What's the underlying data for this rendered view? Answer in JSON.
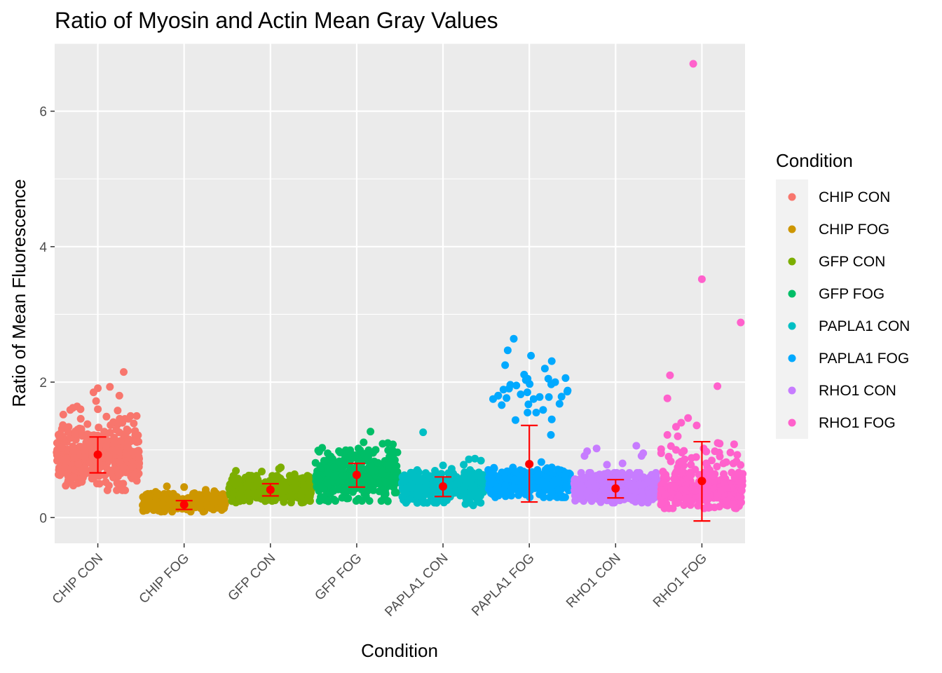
{
  "chart_data": {
    "type": "scatter",
    "title": "Ratio of Myosin and Actin Mean Gray Values",
    "xlabel": "Condition",
    "ylabel": "Ratio of Mean Fluorescence",
    "ylim": [
      -0.38,
      7.0
    ],
    "yticks": [
      0,
      2,
      4,
      6
    ],
    "grid": true,
    "legend": {
      "title": "Condition",
      "position": "right"
    },
    "categories": [
      "CHIP CON",
      "CHIP FOG",
      "GFP CON",
      "GFP FOG",
      "PAPLA1 CON",
      "PAPLA1 FOG",
      "RHO1 CON",
      "RHO1 FOG"
    ],
    "colors": [
      "#F8766D",
      "#CD9600",
      "#7CAE00",
      "#00BE67",
      "#00BFC4",
      "#00A9FF",
      "#C77CFF",
      "#FF61CC"
    ],
    "summary_color": "#FF0000",
    "summary": [
      {
        "category": "CHIP CON",
        "mean": 0.93,
        "lower": 0.66,
        "upper": 1.19
      },
      {
        "category": "CHIP FOG",
        "mean": 0.19,
        "lower": 0.12,
        "upper": 0.25
      },
      {
        "category": "GFP CON",
        "mean": 0.41,
        "lower": 0.32,
        "upper": 0.5
      },
      {
        "category": "GFP FOG",
        "mean": 0.63,
        "lower": 0.45,
        "upper": 0.8
      },
      {
        "category": "PAPLA1 CON",
        "mean": 0.46,
        "lower": 0.31,
        "upper": 0.6
      },
      {
        "category": "PAPLA1 FOG",
        "mean": 0.79,
        "lower": 0.23,
        "upper": 1.36
      },
      {
        "category": "RHO1 CON",
        "mean": 0.43,
        "lower": 0.29,
        "upper": 0.56
      },
      {
        "category": "RHO1 FOG",
        "mean": 0.54,
        "lower": -0.05,
        "upper": 1.12
      }
    ],
    "series": [
      {
        "name": "CHIP CON",
        "clusters": [
          [
            0.93,
            0.24,
            380
          ]
        ],
        "points": [
          [
            -0.32,
            1.59
          ],
          [
            -0.29,
            1.62
          ],
          [
            -0.24,
            1.64
          ],
          [
            -0.2,
            1.6
          ],
          [
            -0.05,
            1.85
          ],
          [
            0.0,
            1.91
          ],
          [
            -0.02,
            1.72
          ],
          [
            0.0,
            1.6
          ],
          [
            0.14,
            1.93
          ],
          [
            0.25,
            1.8
          ],
          [
            0.23,
            1.58
          ],
          [
            0.3,
            2.15
          ],
          [
            0.38,
            1.5
          ],
          [
            0.45,
            1.5
          ],
          [
            0.1,
            1.49
          ],
          [
            -0.4,
            1.52
          ],
          [
            0.18,
            1.41
          ],
          [
            -0.12,
            1.38
          ]
        ]
      },
      {
        "name": "CHIP FOG",
        "clusters": [
          [
            0.22,
            0.06,
            380
          ]
        ],
        "points": [
          [
            -0.42,
            0.35
          ],
          [
            -0.2,
            0.46
          ],
          [
            0.0,
            0.45
          ],
          [
            0.25,
            0.41
          ],
          [
            0.35,
            0.39
          ],
          [
            -0.33,
            0.38
          ],
          [
            0.12,
            0.36
          ]
        ]
      },
      {
        "name": "GFP CON",
        "clusters": [
          [
            0.42,
            0.09,
            380
          ]
        ],
        "points": [
          [
            -0.4,
            0.69
          ],
          [
            -0.1,
            0.68
          ],
          [
            0.1,
            0.72
          ],
          [
            0.12,
            0.74
          ],
          [
            0.28,
            0.64
          ],
          [
            0.45,
            0.6
          ],
          [
            -0.25,
            0.62
          ]
        ]
      },
      {
        "name": "GFP FOG",
        "clusters": [
          [
            0.62,
            0.17,
            380
          ]
        ],
        "points": [
          [
            -0.4,
            1.03
          ],
          [
            -0.18,
            0.96
          ],
          [
            -0.02,
            0.92
          ],
          [
            0.02,
            1.02
          ],
          [
            0.08,
            1.11
          ],
          [
            0.16,
            1.27
          ],
          [
            0.22,
            1.0
          ],
          [
            0.3,
            1.09
          ],
          [
            0.36,
            1.1
          ],
          [
            0.42,
            1.08
          ],
          [
            -0.3,
            0.9
          ],
          [
            -0.33,
            0.24
          ],
          [
            0.36,
            0.24
          ]
        ]
      },
      {
        "name": "PAPLA1 CON",
        "clusters": [
          [
            0.46,
            0.11,
            340
          ]
        ],
        "points": [
          [
            -0.23,
            1.26
          ],
          [
            -0.35,
            0.65
          ],
          [
            0.0,
            0.77
          ],
          [
            0.1,
            0.72
          ],
          [
            0.24,
            0.78
          ],
          [
            0.3,
            0.86
          ],
          [
            0.37,
            0.87
          ],
          [
            0.44,
            0.84
          ],
          [
            0.26,
            0.2
          ],
          [
            0.35,
            0.18
          ],
          [
            -0.1,
            0.22
          ]
        ]
      },
      {
        "name": "PAPLA1 FOG",
        "clusters": [
          [
            0.52,
            0.1,
            320
          ],
          [
            1.85,
            0.12,
            10
          ]
        ],
        "points": [
          [
            -0.42,
            1.75
          ],
          [
            -0.36,
            1.8
          ],
          [
            -0.32,
            1.66
          ],
          [
            -0.3,
            1.89
          ],
          [
            -0.28,
            2.25
          ],
          [
            -0.25,
            2.47
          ],
          [
            -0.22,
            1.96
          ],
          [
            -0.18,
            2.64
          ],
          [
            -0.15,
            1.95
          ],
          [
            -0.1,
            1.82
          ],
          [
            -0.06,
            2.11
          ],
          [
            -0.04,
            2.03
          ],
          [
            -0.02,
            2.05
          ],
          [
            0.02,
            2.39
          ],
          [
            0.05,
            1.75
          ],
          [
            0.08,
            1.55
          ],
          [
            0.12,
            1.78
          ],
          [
            0.16,
            1.59
          ],
          [
            0.18,
            2.2
          ],
          [
            0.22,
            2.05
          ],
          [
            0.26,
            2.31
          ],
          [
            0.3,
            2.0
          ],
          [
            0.35,
            1.68
          ],
          [
            0.42,
            2.06
          ],
          [
            0.44,
            1.86
          ],
          [
            -0.16,
            1.44
          ],
          [
            0.25,
            1.22
          ],
          [
            0.26,
            1.45
          ],
          [
            -0.02,
            1.55
          ],
          [
            0.14,
            0.82
          ]
        ]
      },
      {
        "name": "RHO1 CON",
        "clusters": [
          [
            0.44,
            0.1,
            380
          ]
        ],
        "points": [
          [
            -0.36,
            0.91
          ],
          [
            -0.33,
            0.98
          ],
          [
            -0.22,
            1.02
          ],
          [
            0.24,
            1.06
          ],
          [
            0.3,
            0.91
          ],
          [
            0.32,
            0.95
          ],
          [
            0.08,
            0.8
          ],
          [
            -0.1,
            0.78
          ]
        ]
      },
      {
        "name": "RHO1 FOG",
        "clusters": [
          [
            0.4,
            0.12,
            360
          ],
          [
            0.8,
            0.15,
            30
          ]
        ],
        "points": [
          [
            -0.1,
            6.7
          ],
          [
            0.0,
            3.52
          ],
          [
            0.45,
            2.88
          ],
          [
            -0.37,
            2.1
          ],
          [
            -0.4,
            1.76
          ],
          [
            0.18,
            1.94
          ],
          [
            -0.3,
            1.34
          ],
          [
            -0.24,
            1.4
          ],
          [
            -0.16,
            1.47
          ],
          [
            -0.06,
            1.36
          ],
          [
            -0.4,
            1.22
          ],
          [
            -0.28,
            1.2
          ],
          [
            -0.3,
            1.0
          ],
          [
            0.02,
            1.02
          ],
          [
            0.15,
            0.98
          ],
          [
            0.2,
            0.96
          ],
          [
            0.33,
            0.96
          ],
          [
            0.4,
            0.83
          ],
          [
            -0.36,
            0.83
          ],
          [
            -0.2,
            0.86
          ],
          [
            -0.12,
            0.88
          ],
          [
            0.05,
            0.8
          ],
          [
            0.25,
            0.8
          ]
        ]
      }
    ]
  }
}
